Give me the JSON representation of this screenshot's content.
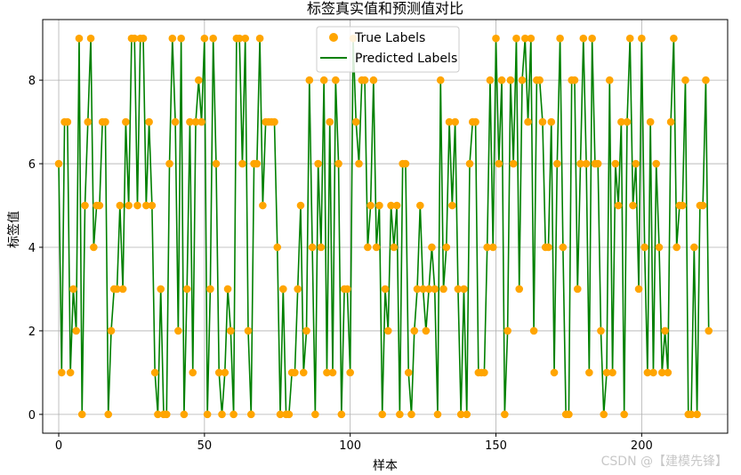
{
  "watermark": "CSDN @【建模先锋】",
  "chart_data": {
    "type": "line",
    "title": "标签真实值和预测值对比",
    "xlabel": "样本",
    "ylabel": "标签值",
    "xlim": [
      -5.5,
      229.5
    ],
    "ylim": [
      -0.45,
      9.45
    ],
    "xticks": [
      0,
      50,
      100,
      150,
      200
    ],
    "yticks": [
      0,
      2,
      4,
      6,
      8
    ],
    "grid": true,
    "legend_position": "top-center",
    "series": [
      {
        "name": "True Labels",
        "kind": "scatter",
        "color": "#ffa500",
        "values": [
          6,
          1,
          7,
          7,
          1,
          3,
          2,
          9,
          0,
          5,
          7,
          9,
          4,
          5,
          5,
          7,
          7,
          0,
          2,
          3,
          3,
          5,
          3,
          7,
          5,
          9,
          9,
          5,
          9,
          9,
          5,
          7,
          5,
          1,
          0,
          3,
          0,
          0,
          6,
          9,
          7,
          2,
          9,
          0,
          3,
          7,
          1,
          7,
          8,
          7,
          9,
          0,
          3,
          9,
          6,
          1,
          0,
          1,
          3,
          2,
          0,
          9,
          9,
          6,
          9,
          2,
          0,
          6,
          6,
          9,
          5,
          7,
          7,
          7,
          7,
          4,
          0,
          3,
          0,
          0,
          1,
          1,
          3,
          5,
          1,
          2,
          8,
          4,
          0,
          6,
          4,
          8,
          1,
          7,
          1,
          8,
          6,
          0,
          3,
          3,
          1,
          9,
          7,
          6,
          8,
          8,
          4,
          5,
          8,
          4,
          5,
          0,
          3,
          2,
          5,
          4,
          5,
          0,
          6,
          6,
          1,
          0,
          2,
          3,
          5,
          3,
          2,
          3,
          4,
          3,
          0,
          8,
          3,
          4,
          7,
          5,
          7,
          3,
          0,
          3,
          0,
          6,
          7,
          7,
          1,
          1,
          1,
          4,
          8,
          4,
          9,
          6,
          8,
          0,
          2,
          8,
          6,
          9,
          3,
          8,
          9,
          7,
          9,
          2,
          8,
          8,
          7,
          4,
          4,
          7,
          1,
          6,
          9,
          4,
          0,
          0,
          8,
          8,
          3,
          6,
          9,
          6,
          1,
          9,
          6,
          6,
          2,
          0,
          1,
          8,
          1,
          6,
          5,
          7,
          0,
          7,
          9,
          5,
          6,
          3,
          9,
          4,
          1,
          7,
          1,
          6,
          4,
          1,
          2,
          1,
          7,
          9,
          4,
          5,
          5,
          8,
          0,
          0,
          4,
          0,
          5,
          5,
          8,
          2
        ]
      },
      {
        "name": "Predicted Labels",
        "kind": "line",
        "color": "#008000",
        "values": [
          6,
          1,
          7,
          7,
          1,
          3,
          2,
          9,
          0,
          5,
          7,
          9,
          4,
          5,
          5,
          7,
          7,
          0,
          2,
          3,
          3,
          5,
          3,
          7,
          5,
          9,
          9,
          5,
          9,
          9,
          5,
          7,
          5,
          1,
          0,
          3,
          0,
          0,
          6,
          9,
          7,
          2,
          9,
          0,
          3,
          7,
          1,
          7,
          8,
          7,
          9,
          0,
          3,
          9,
          6,
          1,
          0,
          1,
          3,
          2,
          0,
          9,
          9,
          6,
          9,
          2,
          0,
          6,
          6,
          9,
          5,
          7,
          7,
          7,
          7,
          4,
          0,
          3,
          0,
          0,
          1,
          1,
          3,
          5,
          1,
          2,
          8,
          4,
          0,
          6,
          4,
          8,
          1,
          7,
          1,
          8,
          6,
          0,
          3,
          3,
          1,
          9,
          7,
          6,
          8,
          8,
          4,
          5,
          8,
          4,
          5,
          0,
          3,
          2,
          5,
          4,
          5,
          0,
          6,
          6,
          1,
          0,
          2,
          3,
          5,
          3,
          2,
          3,
          4,
          3,
          0,
          8,
          3,
          4,
          7,
          5,
          7,
          3,
          0,
          3,
          0,
          6,
          7,
          7,
          1,
          1,
          1,
          4,
          8,
          4,
          9,
          6,
          8,
          0,
          2,
          8,
          6,
          9,
          3,
          8,
          9,
          7,
          9,
          2,
          8,
          8,
          7,
          4,
          4,
          7,
          1,
          6,
          9,
          4,
          0,
          0,
          8,
          8,
          3,
          6,
          9,
          6,
          1,
          9,
          6,
          6,
          2,
          0,
          1,
          8,
          1,
          6,
          5,
          7,
          0,
          7,
          9,
          5,
          6,
          3,
          9,
          4,
          1,
          7,
          1,
          6,
          4,
          1,
          2,
          1,
          7,
          9,
          4,
          5,
          5,
          8,
          0,
          0,
          4,
          0,
          5,
          5,
          8,
          2
        ]
      }
    ]
  }
}
